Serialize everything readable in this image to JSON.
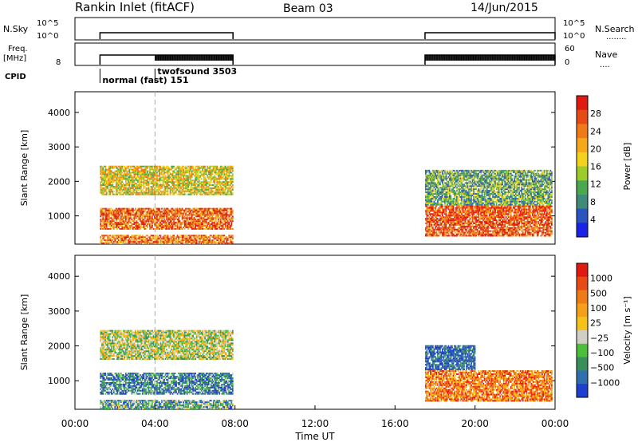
{
  "header": {
    "station": "Rankin Inlet (fitACF)",
    "beam": "Beam 03",
    "date": "14/Jun/2015"
  },
  "status_panels": {
    "nsky": {
      "left_label": "N.Sky",
      "right_label": "N.Search",
      "right_dots": "........",
      "left_ticks": [
        "10^5",
        "10^0"
      ],
      "right_ticks": [
        "10^5",
        "10^0"
      ]
    },
    "freq": {
      "left_label": "Freq.",
      "left_unit": "[MHz]",
      "right_label": "Nave",
      "right_dots": "....",
      "left_ticks": [
        "8"
      ],
      "right_ticks": [
        "60",
        "0"
      ]
    },
    "cpid": {
      "label": "CPID",
      "modes": [
        {
          "text": "normal (fast) 151",
          "start_h": 1.25
        },
        {
          "text": "twofsound 3503",
          "start_h": 4.0
        }
      ]
    },
    "data_segments_h": [
      [
        1.25,
        7.9
      ],
      [
        17.5,
        24.0
      ]
    ]
  },
  "chart_data": [
    {
      "type": "heatmap",
      "title": "",
      "parameter": "Power",
      "ylabel": "Slant Range [km]",
      "xlabel": "",
      "ylim": [
        180,
        4600
      ],
      "yticks": [
        1000,
        2000,
        3000,
        4000
      ],
      "xlim_h": [
        0,
        24
      ],
      "colorbar": {
        "label": "Power [dB]",
        "ticks": [
          "4",
          "8",
          "12",
          "16",
          "20",
          "24",
          "28"
        ],
        "colors": [
          "#1a22e8",
          "#2a55c0",
          "#3f8a7a",
          "#4aa84e",
          "#9ccc2a",
          "#f2d21c",
          "#f5a81a",
          "#f07a18",
          "#e84a14",
          "#e01a10"
        ]
      },
      "echo_bands": [
        {
          "t": [
            1.25,
            7.9
          ],
          "range_km": [
            1600,
            2450
          ],
          "level": 0.55
        },
        {
          "t": [
            1.25,
            7.9
          ],
          "range_km": [
            600,
            1200
          ],
          "level": 0.8
        },
        {
          "t": [
            1.25,
            7.9
          ],
          "range_km": [
            180,
            420
          ],
          "level": 0.75
        },
        {
          "t": [
            17.5,
            23.8
          ],
          "range_km": [
            400,
            1300
          ],
          "level": 0.85
        },
        {
          "t": [
            17.5,
            23.8
          ],
          "range_km": [
            1300,
            2300
          ],
          "level": 0.35
        }
      ]
    },
    {
      "type": "heatmap",
      "title": "",
      "parameter": "Velocity",
      "ylabel": "Slant Range [km]",
      "xlabel": "Time UT",
      "ylim": [
        180,
        4600
      ],
      "yticks": [
        1000,
        2000,
        3000,
        4000
      ],
      "xlim_h": [
        0,
        24
      ],
      "xticks": [
        "00:00",
        "04:00",
        "08:00",
        "12:00",
        "16:00",
        "20:00",
        "00:00"
      ],
      "colorbar": {
        "label": "Velocity [m s⁻¹]",
        "ticks": [
          "1000",
          "500",
          "100",
          "25",
          "−25",
          "−100",
          "−500",
          "−1000"
        ],
        "colors": [
          "#1e3fd0",
          "#2f6fb0",
          "#3a8e5a",
          "#4bbf3a",
          "#cfcfc4",
          "#f5c21a",
          "#f5a01a",
          "#ef7a18",
          "#e84a14",
          "#e01a10"
        ]
      },
      "echo_bands": [
        {
          "t": [
            1.25,
            7.9
          ],
          "range_km": [
            1600,
            2450
          ],
          "level": 0.45
        },
        {
          "t": [
            1.25,
            7.9
          ],
          "range_km": [
            600,
            1200
          ],
          "level": 0.2
        },
        {
          "t": [
            1.25,
            7.9
          ],
          "range_km": [
            180,
            420
          ],
          "level": 0.3
        },
        {
          "t": [
            17.5,
            23.8
          ],
          "range_km": [
            400,
            1300
          ],
          "level": 0.75
        },
        {
          "t": [
            17.5,
            20.0
          ],
          "range_km": [
            1300,
            2000
          ],
          "level": 0.1
        }
      ]
    }
  ]
}
